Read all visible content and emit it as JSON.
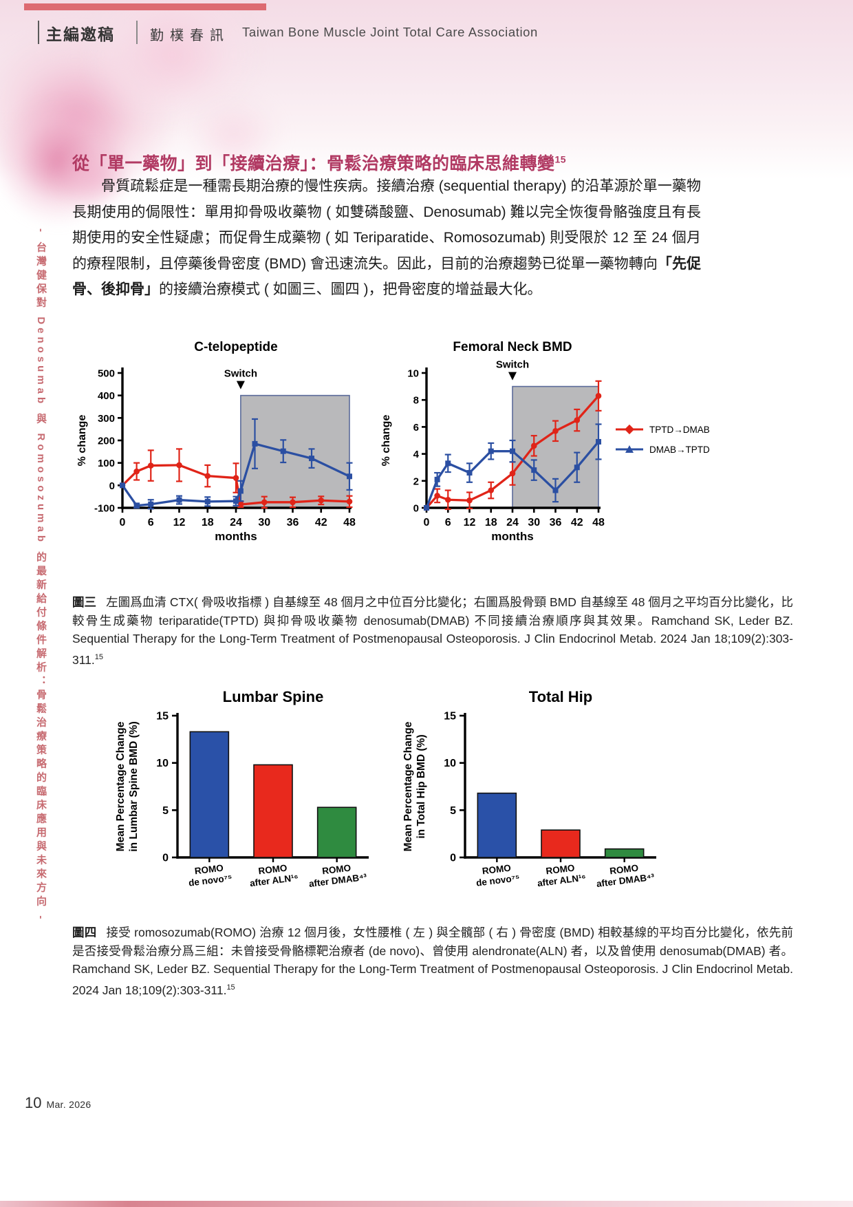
{
  "header": {
    "column_label": "主編邀稿",
    "newsletter_name": "勤樸春訊",
    "association": "Taiwan Bone Muscle Joint Total Care Association"
  },
  "sidebar_vertical_text": "- 台灣健保對 Denosumab 與 Romosozumab 的最新給付條件解析：骨鬆治療策略的臨床應用與未來方向 -",
  "article": {
    "title": "從「單一藥物」到「接續治療」：骨鬆治療策略的臨床思維轉變",
    "title_ref": "15",
    "para_part1": "骨質疏鬆症是一種需長期治療的慢性疾病。接續治療 (sequential therapy) 的沿革源於單一藥物長期使用的侷限性：單用抑骨吸收藥物 ( 如雙磷酸鹽、Denosumab) 難以完全恢復骨骼強度且有長期使用的安全性疑慮；而促骨生成藥物 ( 如 Teriparatide、Romosozumab) 則受限於 12 至 24 個月的療程限制，且停藥後骨密度 (BMD) 會迅速流失。因此，目前的治療趨勢已從單一藥物轉向",
    "para_bold": "「先促骨、後抑骨」",
    "para_part2": "的接續治療模式 ( 如圖三、圖四 )，把骨密度的增益最大化。"
  },
  "figure3": {
    "caption_label": "圖三",
    "caption_text": "左圖爲血清 CTX( 骨吸收指標 ) 自基線至 48 個月之中位百分比變化；右圖爲股骨頸 BMD 自基線至 48 個月之平均百分比變化，比較骨生成藥物 teriparatide(TPTD) 與抑骨吸收藥物 denosumab(DMAB) 不同接續治療順序與其效果。Ramchand SK, Leder BZ. Sequential Therapy for the Long-Term Treatment of Postmenopausal Osteoporosis. J Clin Endocrinol Metab. 2024 Jan 18;109(2):303-311.",
    "caption_ref": "15"
  },
  "figure4": {
    "caption_label": "圖四",
    "caption_text": "接受 romosozumab(ROMO) 治療 12 個月後，女性腰椎 ( 左 ) 與全髖部 ( 右 ) 骨密度 (BMD) 相較基線的平均百分比變化，依先前是否接受骨鬆治療分爲三組：未曾接受骨骼標靶治療者 (de novo)、曾使用 alendronate(ALN) 者，以及曾使用 denosumab(DMAB) 者。Ramchand SK, Leder BZ. Sequential Therapy for the Long-Term Treatment of Postmenopausal Osteoporosis. J Clin Endocrinol Metab. 2024 Jan 18;109(2):303-311.",
    "caption_ref": "15"
  },
  "footer": {
    "page_number": "10",
    "date": "Mar. 2026"
  },
  "colors": {
    "accent_bar_red": "#dd6a71",
    "title_red": "#b13a63",
    "sidebar_red": "#c76b71",
    "series_red": "#e02418",
    "series_blue": "#2b4fa2",
    "bar_blue": "#2a51a8",
    "bar_red": "#e8291d",
    "bar_green": "#2f8b40",
    "shade_gray": "#b9b9bb"
  },
  "chart_data": [
    {
      "type": "line",
      "title": "C-telopeptide",
      "xlabel": "months",
      "ylabel": "% change",
      "xlim": [
        0,
        48
      ],
      "ylim": [
        -100,
        500
      ],
      "xticks": [
        0,
        6,
        12,
        18,
        24,
        30,
        36,
        42,
        48
      ],
      "yticks": [
        500,
        400,
        300,
        200,
        100,
        0,
        -100
      ],
      "annotation": "Switch",
      "switch_x": 25,
      "shade": {
        "x0": 25,
        "x1": 48,
        "y0": -100,
        "y1": 400
      },
      "legend_position": "none",
      "grid": false,
      "series": [
        {
          "name": "TPTD→DMAB",
          "color": "red",
          "marker": "circle",
          "points": [
            [
              0,
              0,
              0
            ],
            [
              3,
              62,
              38
            ],
            [
              6,
              88,
              68
            ],
            [
              12,
              90,
              72
            ],
            [
              18,
              42,
              48
            ],
            [
              24,
              33,
              65
            ],
            [
              25,
              -85,
              12
            ],
            [
              30,
              -75,
              25
            ],
            [
              36,
              -75,
              22
            ],
            [
              42,
              -67,
              18
            ],
            [
              48,
              -72,
              25
            ]
          ]
        },
        {
          "name": "DMAB→TPTD",
          "color": "blue",
          "marker": "square",
          "points": [
            [
              0,
              0,
              0
            ],
            [
              3,
              -90,
              10
            ],
            [
              6,
              -84,
              20
            ],
            [
              12,
              -65,
              18
            ],
            [
              18,
              -72,
              20
            ],
            [
              24,
              -70,
              20
            ],
            [
              25,
              -25,
              45
            ],
            [
              28,
              185,
              110
            ],
            [
              34,
              152,
              50
            ],
            [
              40,
              120,
              42
            ],
            [
              48,
              40,
              60
            ]
          ]
        }
      ]
    },
    {
      "type": "line",
      "title": "Femoral Neck BMD",
      "xlabel": "months",
      "ylabel": "% change",
      "xlim": [
        0,
        48
      ],
      "ylim": [
        0,
        10
      ],
      "xticks": [
        0,
        6,
        12,
        18,
        24,
        30,
        36,
        42,
        48
      ],
      "yticks": [
        10,
        8,
        6,
        4,
        2,
        0
      ],
      "annotation": "Switch",
      "switch_x": 24,
      "shade": {
        "x0": 24,
        "x1": 48,
        "y0": 0,
        "y1": 9
      },
      "legend_position": "right",
      "grid": false,
      "series": [
        {
          "name": "TPTD→DMAB",
          "color": "red",
          "marker": "circle",
          "points": [
            [
              0,
              0,
              0
            ],
            [
              3,
              0.9,
              0.5
            ],
            [
              6,
              0.6,
              0.7
            ],
            [
              12,
              0.55,
              0.6
            ],
            [
              18,
              1.3,
              0.6
            ],
            [
              24,
              2.55,
              0.85
            ],
            [
              30,
              4.6,
              0.75
            ],
            [
              36,
              5.7,
              0.75
            ],
            [
              42,
              6.5,
              0.8
            ],
            [
              48,
              8.3,
              1.1
            ]
          ]
        },
        {
          "name": "DMAB→TPTD",
          "color": "blue",
          "marker": "square",
          "points": [
            [
              0,
              0,
              0
            ],
            [
              3,
              2.1,
              0.5
            ],
            [
              6,
              3.3,
              0.65
            ],
            [
              12,
              2.6,
              0.7
            ],
            [
              18,
              4.2,
              0.6
            ],
            [
              24,
              4.2,
              0.8
            ],
            [
              30,
              2.8,
              0.75
            ],
            [
              36,
              1.3,
              0.85
            ],
            [
              42,
              3.0,
              1.1
            ],
            [
              48,
              4.9,
              1.3
            ]
          ]
        }
      ]
    },
    {
      "type": "bar",
      "title": "Lumbar Spine",
      "ylabel_line1": "Mean Percentage Change",
      "ylabel_line2": "in Lumbar Spine BMD (%)",
      "ylim": [
        0,
        15
      ],
      "yticks": [
        0,
        5,
        10,
        15
      ],
      "categories": [
        [
          "ROMO",
          "de novo⁷⁵"
        ],
        [
          "ROMO",
          "after ALN¹⁶"
        ],
        [
          "ROMO",
          "after DMAB⁴³"
        ]
      ],
      "values": [
        13.3,
        9.8,
        5.3
      ],
      "bar_colors": [
        "#2a51a8",
        "#e8291d",
        "#2f8b40"
      ]
    },
    {
      "type": "bar",
      "title": "Total Hip",
      "ylabel_line1": "Mean Percentage Change",
      "ylabel_line2": "in Total Hip BMD (%)",
      "ylim": [
        0,
        15
      ],
      "yticks": [
        0,
        5,
        10,
        15
      ],
      "categories": [
        [
          "ROMO",
          "de novo⁷⁵"
        ],
        [
          "ROMO",
          "after ALN¹⁶"
        ],
        [
          "ROMO",
          "after DMAB⁴³"
        ]
      ],
      "values": [
        6.8,
        2.9,
        0.9
      ],
      "bar_colors": [
        "#2a51a8",
        "#e8291d",
        "#2f8b40"
      ]
    }
  ]
}
